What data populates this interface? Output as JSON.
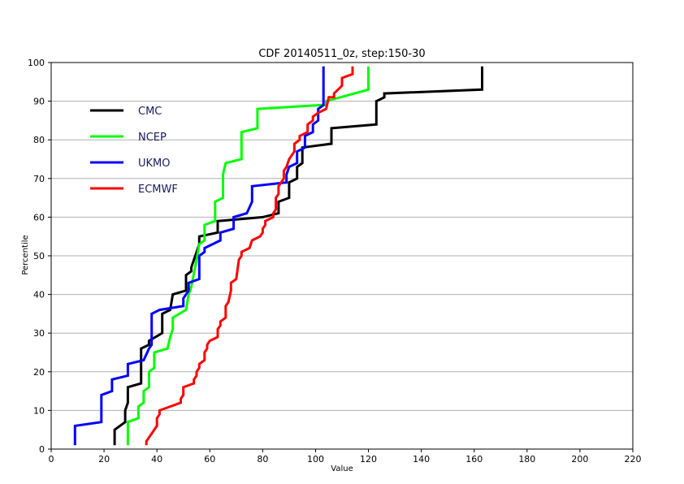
{
  "chart_data": {
    "type": "line",
    "title": "CDF 20140511_0z, step:150-30",
    "xlabel": "Value",
    "ylabel": "Percentile",
    "xlim": [
      0,
      220
    ],
    "ylim": [
      0,
      100
    ],
    "xticks": [
      0,
      20,
      40,
      60,
      80,
      100,
      120,
      140,
      160,
      180,
      200,
      220
    ],
    "yticks": [
      0,
      10,
      20,
      30,
      40,
      50,
      60,
      70,
      80,
      90,
      100
    ],
    "grid": "horizontal",
    "legend_position": "top-left",
    "series": [
      {
        "name": "CMC",
        "color": "#000000",
        "points": [
          [
            24,
            1
          ],
          [
            24,
            5
          ],
          [
            28,
            7
          ],
          [
            28,
            10
          ],
          [
            29,
            12
          ],
          [
            29,
            16
          ],
          [
            34,
            17
          ],
          [
            34,
            26
          ],
          [
            37,
            27
          ],
          [
            37,
            28
          ],
          [
            42,
            30
          ],
          [
            42,
            35
          ],
          [
            45,
            36
          ],
          [
            46,
            40
          ],
          [
            51,
            41
          ],
          [
            51,
            45
          ],
          [
            53,
            46
          ],
          [
            53,
            47
          ],
          [
            56,
            53
          ],
          [
            56,
            55
          ],
          [
            63,
            56
          ],
          [
            63,
            59
          ],
          [
            80,
            60
          ],
          [
            86,
            61
          ],
          [
            86,
            64
          ],
          [
            90,
            65
          ],
          [
            90,
            69
          ],
          [
            93,
            70
          ],
          [
            93,
            73
          ],
          [
            95,
            74
          ],
          [
            95,
            78
          ],
          [
            106,
            79
          ],
          [
            106,
            83
          ],
          [
            123,
            84
          ],
          [
            123,
            90
          ],
          [
            126,
            91
          ],
          [
            126,
            92
          ],
          [
            163,
            93
          ],
          [
            163,
            99
          ]
        ]
      },
      {
        "name": "NCEP",
        "color": "#00ff00",
        "points": [
          [
            29,
            1
          ],
          [
            29,
            7
          ],
          [
            33,
            8
          ],
          [
            33,
            11
          ],
          [
            35,
            12
          ],
          [
            35,
            15
          ],
          [
            37,
            16
          ],
          [
            37,
            20
          ],
          [
            39,
            21
          ],
          [
            39,
            25
          ],
          [
            44,
            26
          ],
          [
            45,
            29
          ],
          [
            46,
            31
          ],
          [
            46,
            34
          ],
          [
            51,
            36
          ],
          [
            52,
            40
          ],
          [
            53,
            42
          ],
          [
            55,
            49
          ],
          [
            56,
            53
          ],
          [
            58,
            54
          ],
          [
            58,
            58
          ],
          [
            62,
            59
          ],
          [
            62,
            64
          ],
          [
            65,
            65
          ],
          [
            65,
            71
          ],
          [
            66,
            74
          ],
          [
            72,
            75
          ],
          [
            72,
            82
          ],
          [
            78,
            83
          ],
          [
            78,
            88
          ],
          [
            102,
            89
          ],
          [
            104,
            89
          ],
          [
            104,
            90
          ],
          [
            120,
            93
          ],
          [
            120,
            99
          ]
        ]
      },
      {
        "name": "UKMO",
        "color": "#0000ff",
        "points": [
          [
            9,
            1
          ],
          [
            9,
            6
          ],
          [
            19,
            7
          ],
          [
            19,
            14
          ],
          [
            23,
            15
          ],
          [
            23,
            18
          ],
          [
            29,
            19
          ],
          [
            29,
            22
          ],
          [
            35,
            23
          ],
          [
            37,
            26
          ],
          [
            38,
            27
          ],
          [
            38,
            35
          ],
          [
            41,
            36
          ],
          [
            50,
            37
          ],
          [
            50,
            39
          ],
          [
            52,
            41
          ],
          [
            52,
            43
          ],
          [
            56,
            44
          ],
          [
            56,
            50
          ],
          [
            58,
            51
          ],
          [
            58,
            52
          ],
          [
            64,
            54
          ],
          [
            64,
            56
          ],
          [
            69,
            57
          ],
          [
            69,
            60
          ],
          [
            74,
            61
          ],
          [
            76,
            64
          ],
          [
            76,
            68
          ],
          [
            89,
            69
          ],
          [
            89,
            71
          ],
          [
            90,
            73
          ],
          [
            93,
            74
          ],
          [
            93,
            77
          ],
          [
            96,
            78
          ],
          [
            96,
            81
          ],
          [
            99,
            82
          ],
          [
            99,
            84
          ],
          [
            101,
            85
          ],
          [
            101,
            88
          ],
          [
            103,
            89
          ],
          [
            103,
            99
          ]
        ]
      },
      {
        "name": "ECMWF",
        "color": "#ff0000",
        "points": [
          [
            36,
            1
          ],
          [
            36,
            2
          ],
          [
            37,
            3
          ],
          [
            38,
            4
          ],
          [
            40,
            6
          ],
          [
            40,
            8
          ],
          [
            41,
            9
          ],
          [
            41,
            10
          ],
          [
            49,
            12
          ],
          [
            49,
            13
          ],
          [
            50,
            14
          ],
          [
            50,
            16
          ],
          [
            54,
            17
          ],
          [
            54,
            18
          ],
          [
            55,
            19
          ],
          [
            55,
            20
          ],
          [
            56,
            21
          ],
          [
            56,
            22
          ],
          [
            58,
            23
          ],
          [
            58,
            25
          ],
          [
            59,
            26
          ],
          [
            59,
            27
          ],
          [
            60,
            28
          ],
          [
            63,
            29
          ],
          [
            63,
            31
          ],
          [
            64,
            32
          ],
          [
            64,
            33
          ],
          [
            66,
            34
          ],
          [
            66,
            37
          ],
          [
            67,
            38
          ],
          [
            68,
            41
          ],
          [
            68,
            43
          ],
          [
            70,
            44
          ],
          [
            71,
            49
          ],
          [
            72,
            50
          ],
          [
            72,
            51
          ],
          [
            75,
            52
          ],
          [
            76,
            54
          ],
          [
            79,
            55
          ],
          [
            80,
            56
          ],
          [
            80,
            57
          ],
          [
            81,
            58
          ],
          [
            81,
            59
          ],
          [
            84,
            60
          ],
          [
            84,
            61
          ],
          [
            85,
            62
          ],
          [
            85,
            65
          ],
          [
            86,
            66
          ],
          [
            86,
            68
          ],
          [
            87,
            69
          ],
          [
            88,
            70
          ],
          [
            88,
            72
          ],
          [
            89,
            73
          ],
          [
            90,
            75
          ],
          [
            91,
            76
          ],
          [
            92,
            77
          ],
          [
            92,
            79
          ],
          [
            94,
            80
          ],
          [
            94,
            81
          ],
          [
            97,
            82
          ],
          [
            97,
            84
          ],
          [
            99,
            85
          ],
          [
            99,
            86
          ],
          [
            101,
            87
          ],
          [
            104,
            88
          ],
          [
            105,
            91
          ],
          [
            107,
            91
          ],
          [
            107,
            92
          ],
          [
            110,
            94
          ],
          [
            110,
            96
          ],
          [
            114,
            97
          ],
          [
            114,
            99
          ]
        ]
      }
    ]
  }
}
